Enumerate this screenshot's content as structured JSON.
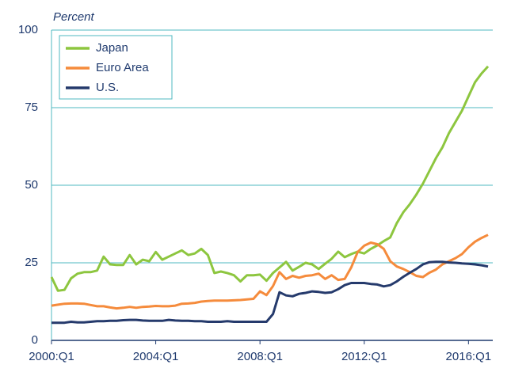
{
  "chart_data": {
    "type": "line",
    "ylabel": "Percent",
    "categories": [
      "2000:Q1",
      null,
      null,
      null,
      null,
      null,
      null,
      null,
      null,
      null,
      null,
      null,
      null,
      null,
      null,
      null,
      "2004:Q1",
      null,
      null,
      null,
      null,
      null,
      null,
      null,
      null,
      null,
      null,
      null,
      null,
      null,
      null,
      null,
      "2008:Q1",
      null,
      null,
      null,
      null,
      null,
      null,
      null,
      null,
      null,
      null,
      null,
      null,
      null,
      null,
      null,
      "2012:Q1",
      null,
      null,
      null,
      null,
      null,
      null,
      null,
      null,
      null,
      null,
      null,
      null,
      null,
      null,
      null,
      "2016:Q1",
      null,
      null,
      null
    ],
    "series": [
      {
        "name": "Japan",
        "color": "#8dc63f",
        "values": [
          20.4,
          16,
          16.3,
          20,
          21.5,
          22,
          22,
          22.5,
          27,
          24.5,
          24.3,
          24.3,
          27.5,
          24.5,
          26,
          25.5,
          28.5,
          26,
          27,
          28,
          29,
          27.5,
          28,
          29.5,
          27.5,
          21.7,
          22.2,
          21.7,
          21,
          19,
          21,
          21,
          21.2,
          19.2,
          21.7,
          23.5,
          25.3,
          22.5,
          23.7,
          25,
          24.5,
          23,
          24.7,
          26.3,
          28.6,
          26.8,
          27.8,
          28.6,
          28,
          29.5,
          30.6,
          32,
          33.2,
          37.8,
          41.3,
          43.9,
          47,
          50.5,
          54.6,
          58.7,
          62.2,
          66.8,
          70.4,
          74,
          78.6,
          83.2,
          86,
          88.3
        ]
      },
      {
        "name": "Euro Area",
        "color": "#f58b3c",
        "values": [
          11.2,
          11.5,
          11.8,
          11.9,
          11.9,
          11.8,
          11.4,
          11.0,
          11.0,
          10.6,
          10.3,
          10.5,
          10.8,
          10.5,
          10.8,
          10.9,
          11.1,
          11.0,
          11.0,
          11.2,
          11.8,
          11.9,
          12.1,
          12.5,
          12.7,
          12.8,
          12.8,
          12.8,
          12.9,
          13.0,
          13.2,
          13.4,
          15.8,
          14.6,
          17.5,
          22.0,
          19.8,
          20.8,
          20.2,
          20.8,
          21.0,
          21.5,
          19.8,
          21.0,
          19.5,
          19.8,
          23.5,
          28.5,
          30.5,
          31.5,
          31.0,
          29.5,
          25.5,
          23.8,
          23.0,
          22.0,
          20.8,
          20.4,
          21.8,
          22.8,
          24.5,
          25.5,
          26.5,
          27.8,
          30.0,
          31.8,
          33.0,
          34.0
        ]
      },
      {
        "name": "U.S.",
        "color": "#253a6c",
        "values": [
          5.7,
          5.7,
          5.7,
          6.0,
          5.8,
          5.8,
          6.0,
          6.2,
          6.2,
          6.3,
          6.3,
          6.5,
          6.6,
          6.6,
          6.4,
          6.3,
          6.3,
          6.3,
          6.6,
          6.4,
          6.3,
          6.3,
          6.2,
          6.2,
          6.0,
          6.0,
          6.0,
          6.2,
          6.0,
          6.0,
          6.0,
          6.0,
          6.0,
          6.0,
          8.5,
          15.5,
          14.5,
          14.2,
          15.0,
          15.3,
          15.8,
          15.6,
          15.3,
          15.5,
          16.5,
          17.8,
          18.5,
          18.5,
          18.5,
          18.2,
          18.0,
          17.4,
          17.8,
          19.0,
          20.5,
          21.8,
          23.0,
          24.5,
          25.2,
          25.3,
          25.3,
          25.1,
          25.0,
          24.8,
          24.7,
          24.5,
          24.2,
          23.8
        ]
      }
    ],
    "ylim": [
      0,
      100
    ],
    "yticks": [
      0,
      25,
      50,
      75,
      100
    ],
    "grid": true,
    "legend": "top-left"
  }
}
